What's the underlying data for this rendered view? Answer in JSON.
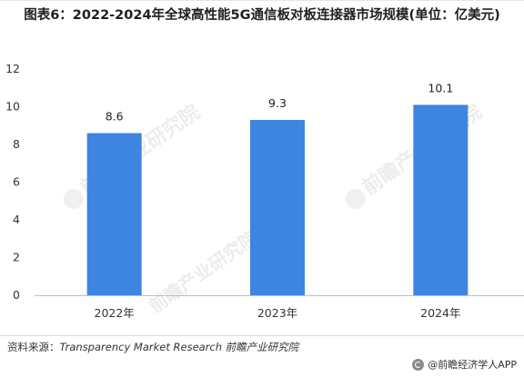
{
  "title": "图表6：2022-2024年全球高性能5G通信板对板连接器市场规模(单位：亿美元)",
  "source_label": "资料来源：",
  "source_text": "Transparency Market Research 前瞻产业研究院",
  "brand_text": "@前瞻经济学人APP",
  "watermark_text": "前瞻产业研究院",
  "colors": {
    "bar": "#3d85e0",
    "axis": "#bfbfbf"
  },
  "chart_data": {
    "type": "bar",
    "title": "图表6：2022-2024年全球高性能5G通信板对板连接器市场规模(单位：亿美元)",
    "categories": [
      "2022年",
      "2023年",
      "2024年"
    ],
    "values": [
      8.6,
      9.3,
      10.1
    ],
    "value_labels": [
      "8.6",
      "9.3",
      "10.1"
    ],
    "y_ticks": [
      "0",
      "2",
      "4",
      "6",
      "8",
      "10",
      "12"
    ],
    "ylim": [
      0,
      12
    ],
    "grid": false,
    "legend": "none"
  }
}
